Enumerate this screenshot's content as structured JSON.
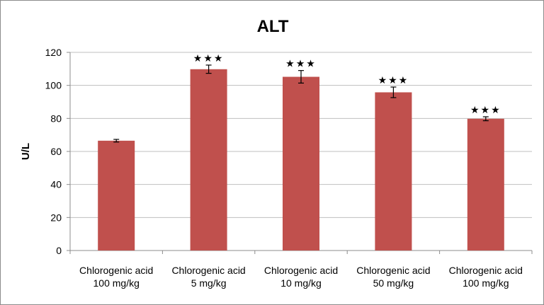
{
  "chart_data": {
    "type": "bar",
    "title": "ALT",
    "xlabel": "",
    "ylabel": "U/L",
    "ylim": [
      0,
      120
    ],
    "yticks": [
      0,
      20,
      40,
      60,
      80,
      100,
      120
    ],
    "grid": true,
    "categories": [
      [
        "Chlorogenic acid",
        "100 mg/kg"
      ],
      [
        "Chlorogenic acid",
        "5 mg/kg"
      ],
      [
        "Chlorogenic acid",
        "10 mg/kg"
      ],
      [
        "Chlorogenic acid",
        "50 mg/kg"
      ],
      [
        "Chlorogenic acid",
        "100 mg/kg"
      ]
    ],
    "values": [
      66.5,
      109.8,
      105.2,
      95.8,
      79.8
    ],
    "errors": [
      0.8,
      2.5,
      3.8,
      3.2,
      1.2
    ],
    "significance": [
      "",
      "★★★",
      "★★★",
      "★★★",
      "★★★"
    ],
    "bar_color": "#c0504d",
    "grid_color": "#bfbfbf"
  }
}
